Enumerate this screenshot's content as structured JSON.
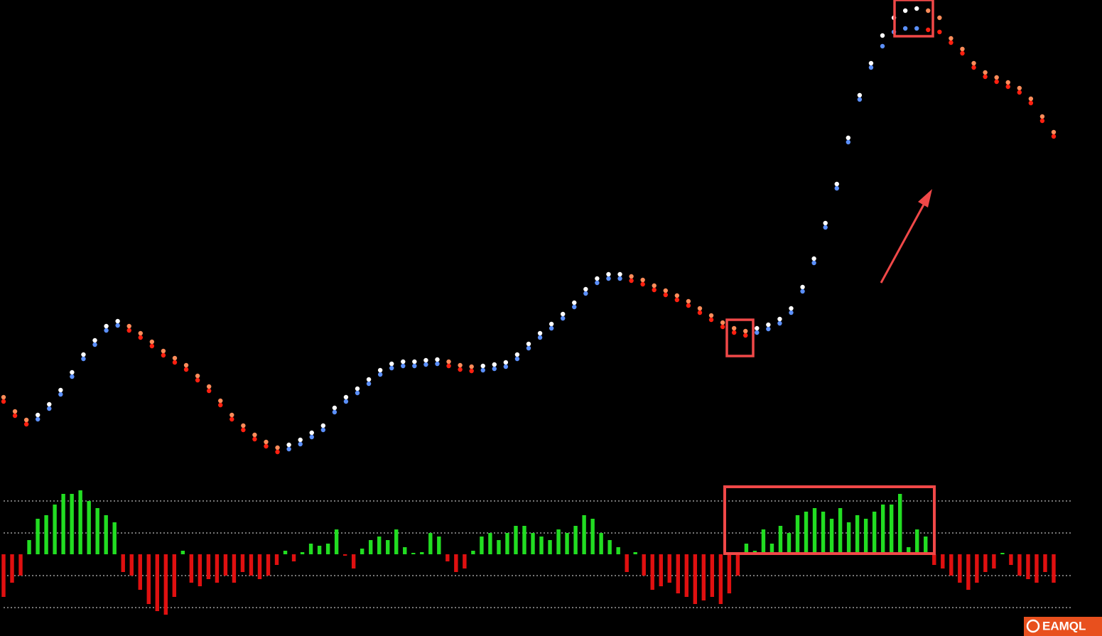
{
  "chart_data": [
    {
      "type": "line",
      "ylim": [
        0,
        660
      ],
      "series": [
        {
          "color_rising": "#ffffff",
          "color_falling": "#ff8c5a",
          "values": [
            101,
            81,
            69,
            76,
            91,
            111,
            136,
            161,
            181,
            201,
            208,
            201,
            191,
            179,
            166,
            156,
            146,
            131,
            116,
            96,
            76,
            61,
            48,
            38,
            30,
            34,
            41,
            51,
            61,
            86,
            101,
            113,
            126,
            139,
            148,
            151,
            151,
            153,
            154,
            151,
            146,
            144,
            145,
            147,
            150,
            161,
            176,
            191,
            204,
            218,
            234,
            253,
            268,
            274,
            274,
            271,
            266,
            258,
            251,
            244,
            236,
            226,
            216,
            206,
            198,
            194,
            198,
            203,
            211,
            226,
            256,
            296,
            346,
            401,
            466,
            526,
            571,
            610,
            635,
            645,
            648,
            645,
            635,
            606,
            591,
            571,
            558,
            551,
            544,
            536,
            521,
            496,
            474
          ]
        },
        {
          "color_rising": "#5b8ff9",
          "color_falling": "#ff2010",
          "values": [
            95,
            75,
            63,
            70,
            85,
            105,
            130,
            155,
            175,
            195,
            202,
            195,
            185,
            173,
            160,
            150,
            140,
            125,
            110,
            90,
            70,
            55,
            42,
            32,
            24,
            28,
            35,
            45,
            55,
            80,
            95,
            107,
            120,
            133,
            142,
            145,
            145,
            147,
            148,
            145,
            140,
            138,
            139,
            141,
            144,
            155,
            170,
            185,
            198,
            212,
            228,
            247,
            262,
            268,
            268,
            265,
            260,
            252,
            245,
            238,
            230,
            220,
            210,
            200,
            192,
            188,
            192,
            197,
            205,
            220,
            250,
            290,
            340,
            395,
            460,
            520,
            565,
            595,
            615,
            620,
            620,
            618,
            615,
            600,
            585,
            565,
            552,
            545,
            538,
            530,
            515,
            490,
            468
          ]
        }
      ]
    },
    {
      "type": "bar",
      "ylim": [
        -100,
        115
      ],
      "levels": [
        75,
        30,
        -30,
        -75
      ],
      "positive_color": "#22dd22",
      "negative_color": "#e01010",
      "values": [
        -60,
        -40,
        -30,
        20,
        50,
        55,
        70,
        85,
        85,
        90,
        75,
        65,
        55,
        45,
        -25,
        -30,
        -50,
        -70,
        -80,
        -85,
        -60,
        5,
        -40,
        -45,
        -35,
        -40,
        -30,
        -40,
        -25,
        -30,
        -35,
        -30,
        -15,
        5,
        -10,
        3,
        15,
        12,
        15,
        35,
        -2,
        -20,
        8,
        20,
        25,
        20,
        35,
        10,
        2,
        3,
        30,
        25,
        -10,
        -25,
        -20,
        5,
        25,
        30,
        20,
        30,
        40,
        40,
        30,
        25,
        20,
        35,
        30,
        40,
        55,
        50,
        30,
        20,
        10,
        -25,
        3,
        -30,
        -50,
        -45,
        -40,
        -55,
        -60,
        -70,
        -65,
        -60,
        -70,
        -55,
        -30,
        15,
        5,
        35,
        15,
        40,
        30,
        55,
        60,
        65,
        60,
        50,
        65,
        45,
        55,
        50,
        60,
        70,
        70,
        85,
        10,
        35,
        25,
        -15,
        -20,
        -30,
        -40,
        -50,
        -40,
        -25,
        -20,
        2,
        -15,
        -30,
        -35,
        -40,
        -25,
        -40
      ]
    }
  ],
  "brand": "EAMQL"
}
